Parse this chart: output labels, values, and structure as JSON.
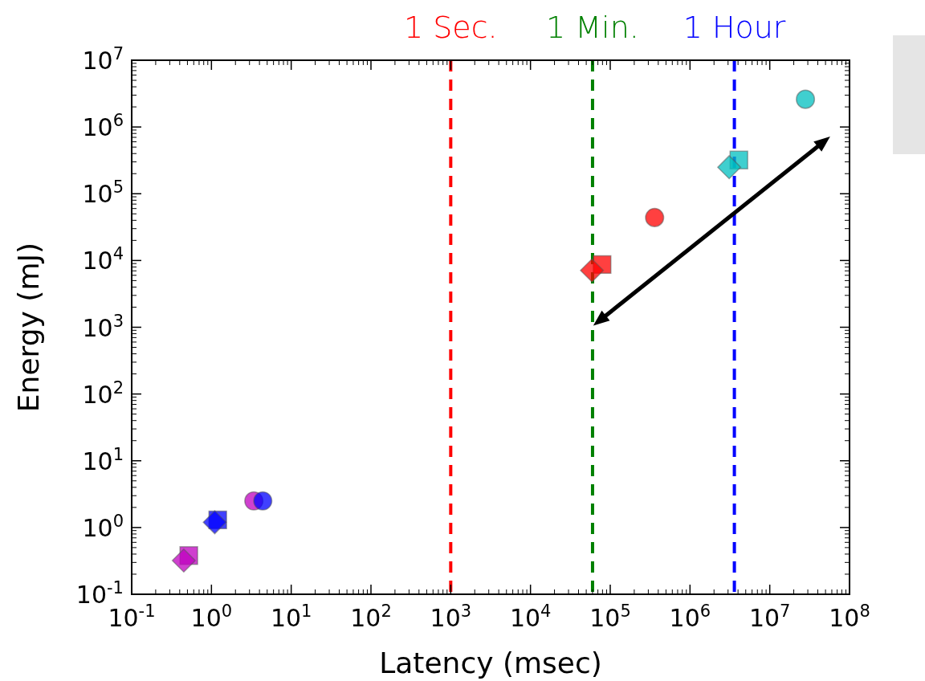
{
  "chart_data": {
    "type": "scatter",
    "xlabel": "Latency (msec)",
    "ylabel": "Energy (mJ)",
    "log": "xy",
    "xlim": [
      0.1,
      100000000
    ],
    "ylim": [
      0.1,
      10000000
    ],
    "xticks": [
      {
        "value": 0.1,
        "label": "10$^{-1}$"
      },
      {
        "value": 1,
        "label": "10$^{0}$"
      },
      {
        "value": 10,
        "label": "10$^{1}$"
      },
      {
        "value": 100,
        "label": "10$^{2}$"
      },
      {
        "value": 1000,
        "label": "10$^{3}$"
      },
      {
        "value": 10000,
        "label": "10$^{4}$"
      },
      {
        "value": 100000,
        "label": "10$^{5}$"
      },
      {
        "value": 1000000,
        "label": "10$^{6}$"
      },
      {
        "value": 10000000,
        "label": "10$^{7}$"
      },
      {
        "value": 100000000,
        "label": "10$^{8}$"
      }
    ],
    "yticks": [
      {
        "value": 0.1,
        "label": "10$^{-1}$"
      },
      {
        "value": 1,
        "label": "10$^{0}$"
      },
      {
        "value": 10,
        "label": "10$^{1}$"
      },
      {
        "value": 100,
        "label": "10$^{2}$"
      },
      {
        "value": 1000,
        "label": "10$^{3}$"
      },
      {
        "value": 10000,
        "label": "10$^{4}$"
      },
      {
        "value": 100000,
        "label": "10$^{5}$"
      },
      {
        "value": 1000000,
        "label": "10$^{6}$"
      },
      {
        "value": 10000000,
        "label": "10$^{7}$"
      }
    ],
    "grid": false,
    "series": [
      {
        "color": "#bf00bf",
        "marker": "diamond",
        "x": [
          0.45
        ],
        "values": [
          0.32
        ]
      },
      {
        "color": "#bf00bf",
        "marker": "square",
        "x": [
          0.52
        ],
        "values": [
          0.38
        ]
      },
      {
        "color": "#bf00bf",
        "marker": "circle",
        "x": [
          3.4
        ],
        "values": [
          2.5
        ]
      },
      {
        "color": "#0000ff",
        "marker": "diamond",
        "x": [
          1.1
        ],
        "values": [
          1.2
        ]
      },
      {
        "color": "#0000ff",
        "marker": "square",
        "x": [
          1.2
        ],
        "values": [
          1.3
        ]
      },
      {
        "color": "#0000ff",
        "marker": "circle",
        "x": [
          4.4
        ],
        "values": [
          2.5
        ]
      },
      {
        "color": "#ff0000",
        "marker": "diamond",
        "x": [
          59000
        ],
        "values": [
          7100
        ]
      },
      {
        "color": "#ff0000",
        "marker": "square",
        "x": [
          79000
        ],
        "values": [
          8700
        ]
      },
      {
        "color": "#ff0000",
        "marker": "circle",
        "x": [
          360000
        ],
        "values": [
          44000
        ]
      },
      {
        "color": "#00bfbf",
        "marker": "diamond",
        "x": [
          3100000
        ],
        "values": [
          250000
        ]
      },
      {
        "color": "#00bfbf",
        "marker": "square",
        "x": [
          4100000
        ],
        "values": [
          320000
        ]
      },
      {
        "color": "#00bfbf",
        "marker": "circle",
        "x": [
          28000000
        ],
        "values": [
          2600000
        ]
      }
    ],
    "ref_lines": [
      {
        "axis": "x",
        "value": 1000,
        "label": "1 Sec.",
        "color": "#ff0000",
        "line_style": "dashed"
      },
      {
        "axis": "x",
        "value": 60000,
        "label": "1 Min.",
        "color": "#008000",
        "line_style": "dashed"
      },
      {
        "axis": "x",
        "value": 3600000,
        "label": "1 Hour",
        "color": "#0000ff",
        "line_style": "dashed"
      }
    ]
  }
}
